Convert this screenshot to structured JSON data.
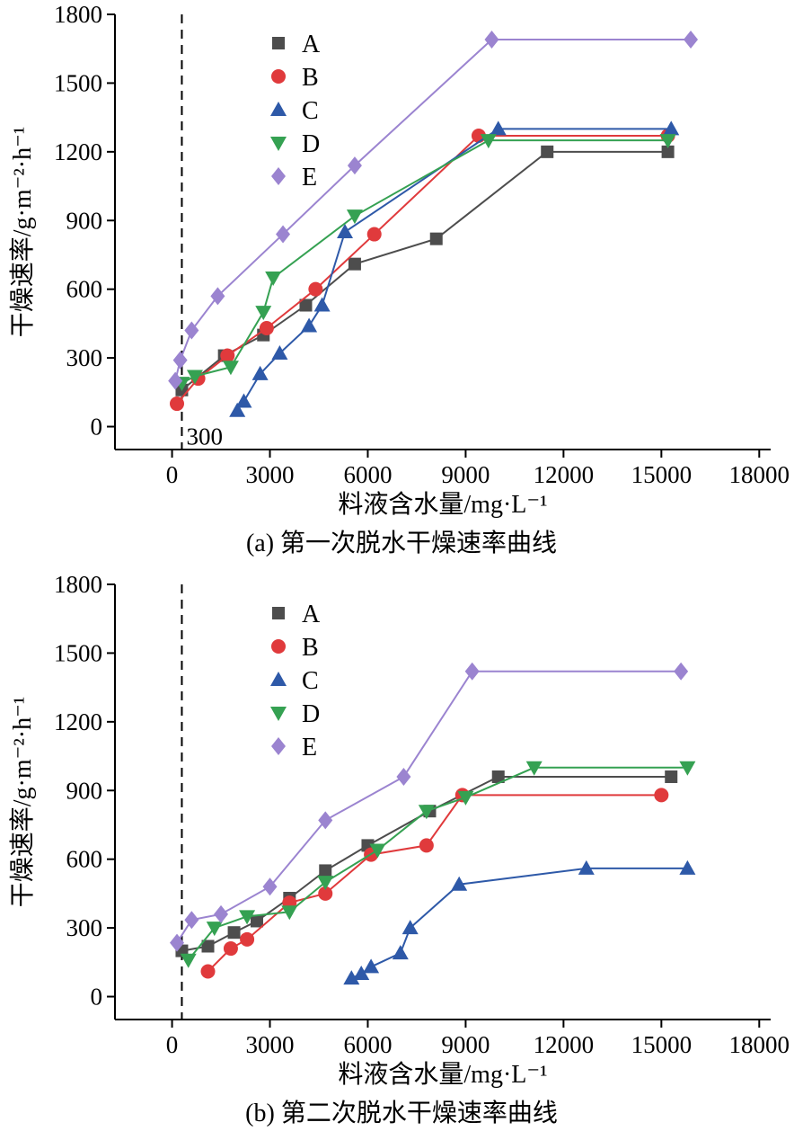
{
  "page": {
    "background_color": "#ffffff"
  },
  "chart_data": [
    {
      "type": "line",
      "caption": "(a) 第一次脱水干燥速率曲线",
      "xlabel": "料液含水量/mg·L⁻¹",
      "ylabel": "干燥速率/g·m⁻²·h⁻¹",
      "xlim": [
        -1750,
        18350
      ],
      "ylim": [
        -100,
        1800
      ],
      "xticks": [
        0,
        3000,
        6000,
        9000,
        12000,
        15000,
        18000
      ],
      "yticks": [
        0,
        300,
        600,
        900,
        1200,
        1500,
        1800
      ],
      "grid": false,
      "legend": {
        "position": "upper-left-inside",
        "items": [
          "A",
          "B",
          "C",
          "D",
          "E"
        ]
      },
      "dashed_line_x": 300,
      "dashed_line_label": "300",
      "series": [
        {
          "name": "A",
          "marker": "square",
          "color": "#4d4d4d",
          "points": [
            [
              300,
              160
            ],
            [
              1600,
              310
            ],
            [
              2800,
              400
            ],
            [
              4100,
              530
            ],
            [
              5600,
              710
            ],
            [
              8100,
              820
            ],
            [
              11500,
              1200
            ],
            [
              15200,
              1200
            ]
          ]
        },
        {
          "name": "B",
          "marker": "circle",
          "color": "#e03a3c",
          "points": [
            [
              150,
              100
            ],
            [
              800,
              210
            ],
            [
              1700,
              310
            ],
            [
              2900,
              430
            ],
            [
              4400,
              600
            ],
            [
              6200,
              840
            ],
            [
              9400,
              1270
            ],
            [
              15200,
              1270
            ]
          ]
        },
        {
          "name": "C",
          "marker": "triangle-up",
          "color": "#2e59a8",
          "points": [
            [
              2000,
              70
            ],
            [
              2200,
              110
            ],
            [
              2700,
              230
            ],
            [
              3300,
              320
            ],
            [
              4200,
              440
            ],
            [
              4600,
              530
            ],
            [
              5300,
              850
            ],
            [
              10000,
              1300
            ],
            [
              15300,
              1300
            ]
          ]
        },
        {
          "name": "D",
          "marker": "triangle-down",
          "color": "#35a152",
          "points": [
            [
              300,
              190
            ],
            [
              700,
              220
            ],
            [
              1800,
              260
            ],
            [
              2800,
              500
            ],
            [
              3100,
              650
            ],
            [
              5600,
              920
            ],
            [
              9700,
              1250
            ],
            [
              15200,
              1250
            ]
          ]
        },
        {
          "name": "E",
          "marker": "diamond",
          "color": "#9b84d0",
          "points": [
            [
              100,
              200
            ],
            [
              250,
              290
            ],
            [
              600,
              420
            ],
            [
              1400,
              570
            ],
            [
              3400,
              840
            ],
            [
              5600,
              1140
            ],
            [
              9800,
              1690
            ],
            [
              15900,
              1690
            ]
          ]
        }
      ]
    },
    {
      "type": "line",
      "caption": "(b) 第二次脱水干燥速率曲线",
      "xlabel": "料液含水量/mg·L⁻¹",
      "ylabel": "干燥速率/g·m⁻²·h⁻¹",
      "xlim": [
        -1750,
        18350
      ],
      "ylim": [
        -100,
        1800
      ],
      "xticks": [
        0,
        3000,
        6000,
        9000,
        12000,
        15000,
        18000
      ],
      "yticks": [
        0,
        300,
        600,
        900,
        1200,
        1500,
        1800
      ],
      "grid": false,
      "legend": {
        "position": "upper-left-inside",
        "items": [
          "A",
          "B",
          "C",
          "D",
          "E"
        ]
      },
      "dashed_line_x": 300,
      "dashed_line_label": "",
      "series": [
        {
          "name": "A",
          "marker": "square",
          "color": "#4d4d4d",
          "points": [
            [
              300,
              200
            ],
            [
              1100,
              220
            ],
            [
              1900,
              280
            ],
            [
              2600,
              330
            ],
            [
              3600,
              430
            ],
            [
              4700,
              550
            ],
            [
              6000,
              660
            ],
            [
              7900,
              810
            ],
            [
              10000,
              960
            ],
            [
              15300,
              960
            ]
          ]
        },
        {
          "name": "B",
          "marker": "circle",
          "color": "#e03a3c",
          "points": [
            [
              1100,
              110
            ],
            [
              1800,
              210
            ],
            [
              2300,
              250
            ],
            [
              3600,
              410
            ],
            [
              4700,
              450
            ],
            [
              6100,
              620
            ],
            [
              7800,
              660
            ],
            [
              8900,
              880
            ],
            [
              15000,
              880
            ]
          ]
        },
        {
          "name": "C",
          "marker": "triangle-up",
          "color": "#2e59a8",
          "points": [
            [
              5500,
              80
            ],
            [
              5800,
              100
            ],
            [
              6100,
              130
            ],
            [
              7000,
              190
            ],
            [
              7300,
              300
            ],
            [
              8800,
              490
            ],
            [
              12700,
              560
            ],
            [
              15800,
              560
            ]
          ]
        },
        {
          "name": "D",
          "marker": "triangle-down",
          "color": "#35a152",
          "points": [
            [
              500,
              160
            ],
            [
              1300,
              300
            ],
            [
              2300,
              350
            ],
            [
              3600,
              370
            ],
            [
              4700,
              500
            ],
            [
              6300,
              640
            ],
            [
              7800,
              810
            ],
            [
              9000,
              870
            ],
            [
              11100,
              1000
            ],
            [
              15800,
              1000
            ]
          ]
        },
        {
          "name": "E",
          "marker": "diamond",
          "color": "#9b84d0",
          "points": [
            [
              150,
              235
            ],
            [
              600,
              335
            ],
            [
              1500,
              360
            ],
            [
              3000,
              480
            ],
            [
              4700,
              770
            ],
            [
              7100,
              960
            ],
            [
              9200,
              1420
            ],
            [
              15600,
              1420
            ]
          ]
        }
      ]
    }
  ]
}
